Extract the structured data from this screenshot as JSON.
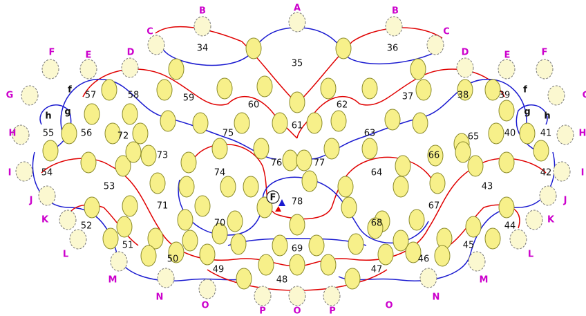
{
  "colors": {
    "red": "#e00000",
    "blue": "#1a1ad0",
    "edge_label": "#cc00cc",
    "hole_fill": "#f7f08a"
  },
  "regions": [
    "34",
    "35",
    "36",
    "37",
    "38",
    "39",
    "40",
    "41",
    "42",
    "43",
    "44",
    "45",
    "46",
    "47",
    "48",
    "49",
    "50",
    "51",
    "52",
    "53",
    "54",
    "55",
    "56",
    "57",
    "58",
    "59",
    "60",
    "61",
    "62",
    "63",
    "64",
    "65",
    "66",
    "67",
    "68",
    "69",
    "70",
    "71",
    "72",
    "73",
    "74",
    "75",
    "76",
    "77",
    "78"
  ],
  "edge_labels": [
    "A",
    "B",
    "B",
    "C",
    "C",
    "D",
    "D",
    "E",
    "E",
    "F",
    "F",
    "G",
    "G",
    "H",
    "H",
    "I",
    "I",
    "J",
    "J",
    "K",
    "K",
    "L",
    "L",
    "M",
    "M",
    "N",
    "N",
    "O",
    "O",
    "O",
    "P",
    "P"
  ],
  "small_labels": [
    "f",
    "f",
    "g",
    "g",
    "h",
    "h"
  ],
  "start_marker": "F"
}
